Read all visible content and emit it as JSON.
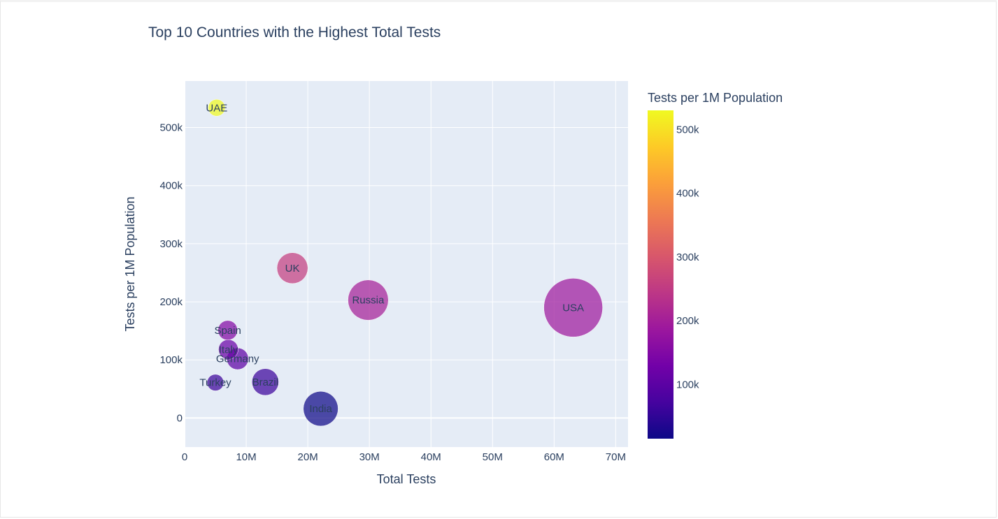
{
  "chart_data": {
    "type": "scatter",
    "title": "Top 10 Countries with the Highest Total Tests",
    "xlabel": "Total Tests",
    "ylabel": "Tests per 1M Population",
    "xlim": [
      0,
      72000000
    ],
    "ylim": [
      -50000,
      580000
    ],
    "x_ticks": [
      0,
      10000000,
      20000000,
      30000000,
      40000000,
      50000000,
      60000000,
      70000000
    ],
    "x_tick_labels": [
      "0",
      "10M",
      "20M",
      "30M",
      "40M",
      "50M",
      "60M",
      "70M"
    ],
    "y_ticks": [
      0,
      100000,
      200000,
      300000,
      400000,
      500000
    ],
    "y_tick_labels": [
      "0",
      "100k",
      "200k",
      "300k",
      "400k",
      "500k"
    ],
    "size_by": "Total Tests",
    "color_by": "Tests per 1M Population",
    "colorbar": {
      "title": "Tests per 1M Population",
      "range": [
        15000,
        530000
      ],
      "ticks": [
        100000,
        200000,
        300000,
        400000,
        500000
      ],
      "tick_labels": [
        "100k",
        "200k",
        "300k",
        "400k",
        "500k"
      ],
      "colorscale": [
        "#0d0887",
        "#46039f",
        "#7201a8",
        "#9c179e",
        "#bd3786",
        "#d8576b",
        "#ed7953",
        "#fb9f3a",
        "#fdca26",
        "#f0f921"
      ]
    },
    "points": [
      {
        "label": "USA",
        "x": 63100000,
        "y": 190000
      },
      {
        "label": "Russia",
        "x": 29800000,
        "y": 203000
      },
      {
        "label": "India",
        "x": 22100000,
        "y": 16000
      },
      {
        "label": "UK",
        "x": 17500000,
        "y": 258000
      },
      {
        "label": "Brazil",
        "x": 13100000,
        "y": 62000
      },
      {
        "label": "Germany",
        "x": 8600000,
        "y": 102000
      },
      {
        "label": "Italy",
        "x": 7100000,
        "y": 118000
      },
      {
        "label": "Spain",
        "x": 7000000,
        "y": 151000
      },
      {
        "label": "UAE",
        "x": 5200000,
        "y": 534000
      },
      {
        "label": "Turkey",
        "x": 5000000,
        "y": 61000
      }
    ],
    "grid": true,
    "plot_background": "#e5ecf6"
  }
}
